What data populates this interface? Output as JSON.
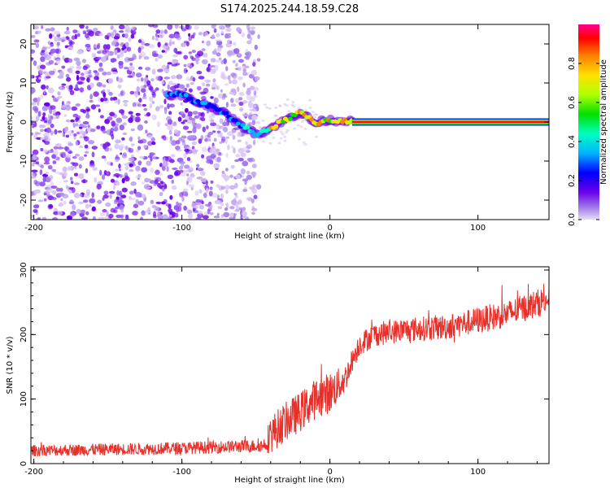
{
  "title": "S174.2025.244.18.59.C28",
  "chart_data": [
    {
      "type": "heatmap",
      "title": "S174.2025.244.18.59.C28",
      "xlabel": "Height of straight line (km)",
      "ylabel": "Frequency (Hz)",
      "xlim": [
        -202,
        148
      ],
      "ylim": [
        -25,
        25
      ],
      "xticks": [
        "-200",
        "-100",
        "0",
        "100"
      ],
      "xtick_values": [
        -200,
        -100,
        0,
        100
      ],
      "yticks": [
        "-20",
        "-10",
        "0",
        "10",
        "20"
      ],
      "ytick_values": [
        -20,
        -10,
        0,
        10,
        20
      ],
      "noise_region_x": [
        -202,
        -48
      ],
      "ridge": {
        "x": [
          -110,
          -100,
          -90,
          -80,
          -70,
          -60,
          -50,
          -45,
          -40,
          -35,
          -30,
          -25,
          -20,
          -15,
          -10,
          -5,
          0,
          5,
          10,
          15,
          148
        ],
        "y": [
          7,
          7,
          5,
          4,
          2,
          -1,
          -3,
          -2.5,
          -1.5,
          -0.5,
          0.5,
          1.5,
          2.5,
          1.2,
          -0.5,
          0.3,
          0.5,
          0.3,
          0.5,
          0,
          0
        ]
      },
      "steady_line_start_x": 15,
      "colorbar": {
        "label": "Normalized spectral amplitude",
        "range": [
          0.0,
          1.0
        ],
        "ticks": [
          "0.0",
          "0.2",
          "0.4",
          "0.6",
          "0.8"
        ],
        "tick_values": [
          0.0,
          0.2,
          0.4,
          0.6,
          0.8
        ]
      }
    },
    {
      "type": "line",
      "xlabel": "Height of straight line (km)",
      "ylabel": "SNR (10 * v/v)",
      "xlim": [
        -202,
        148
      ],
      "ylim": [
        0,
        305
      ],
      "xticks": [
        "-200",
        "-100",
        "0",
        "100"
      ],
      "xtick_values": [
        -200,
        -100,
        0,
        100
      ],
      "yticks": [
        "0",
        "100",
        "200",
        "300"
      ],
      "ytick_values": [
        0,
        100,
        200,
        300
      ],
      "series": [
        {
          "name": "SNR",
          "color": "#e8302a",
          "trend": {
            "x": [
              -202,
              -150,
              -100,
              -70,
              -45,
              -40,
              -30,
              -20,
              -10,
              0,
              10,
              15,
              20,
              30,
              50,
              80,
              100,
              120,
              148
            ],
            "y": [
              20,
              22,
              24,
              26,
              28,
              45,
              65,
              80,
              100,
              110,
              130,
              160,
              185,
              200,
              207,
              212,
              222,
              232,
              255
            ]
          },
          "noise_amplitude": {
            "x": [
              -202,
              -45,
              -40,
              0,
              15,
              148
            ],
            "y": [
              9,
              10,
              30,
              32,
              18,
              22
            ]
          }
        }
      ]
    }
  ]
}
